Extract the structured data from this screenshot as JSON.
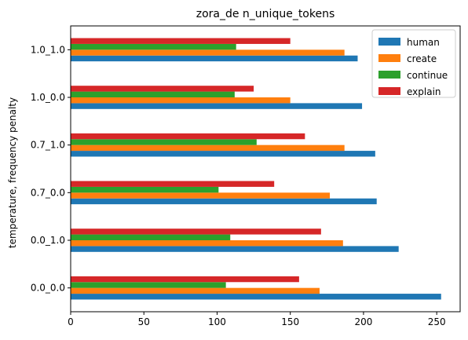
{
  "chart_data": {
    "type": "bar",
    "orientation": "horizontal",
    "title": "zora_de n_unique_tokens",
    "xlabel": "",
    "ylabel": "temperature, frequency penalty",
    "categories": [
      "0.0_0.0",
      "0.0_1.0",
      "0.7_0.0",
      "0.7_1.0",
      "1.0_0.0",
      "1.0_1.0"
    ],
    "series": [
      {
        "name": "human",
        "color": "#1f77b4",
        "values": [
          253,
          224,
          209,
          208,
          199,
          196
        ]
      },
      {
        "name": "create",
        "color": "#ff7f0e",
        "values": [
          170,
          186,
          177,
          187,
          150,
          187
        ]
      },
      {
        "name": "continue",
        "color": "#2ca02c",
        "values": [
          106,
          109,
          101,
          127,
          112,
          113
        ]
      },
      {
        "name": "explain",
        "color": "#d62728",
        "values": [
          156,
          171,
          139,
          160,
          125,
          150
        ]
      }
    ],
    "xlim": [
      0,
      266
    ],
    "xticks": [
      0,
      50,
      100,
      150,
      200,
      250
    ],
    "grid": false,
    "legend_position": "top-right"
  }
}
